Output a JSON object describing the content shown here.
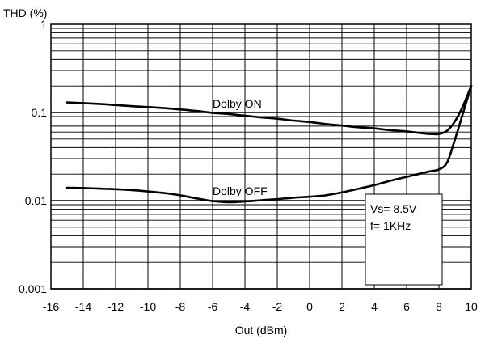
{
  "chart_data": {
    "type": "line",
    "title": "",
    "ylabel": "THD (%)",
    "xlabel": "Out (dBm)",
    "xlim": [
      -16,
      10
    ],
    "ylim": [
      0.001,
      1
    ],
    "y_scale": "log",
    "grid": true,
    "x_ticks": [
      -16,
      -14,
      -12,
      -10,
      -8,
      -6,
      -4,
      -2,
      0,
      2,
      4,
      6,
      8,
      10
    ],
    "x_tick_labels": [
      "-16",
      "-14",
      "-12",
      "-10",
      "-8",
      "-6",
      "-4",
      "-2",
      "0",
      "2",
      "4",
      "6",
      "8",
      "10"
    ],
    "y_ticks": [
      1,
      0.1,
      0.01,
      0.001
    ],
    "y_tick_labels": [
      "1",
      "0.1",
      "0.01",
      "0.001"
    ],
    "series": [
      {
        "name": "Dolby ON",
        "x": [
          -15,
          -13,
          -11,
          -9,
          -7,
          -6,
          -5,
          -4,
          -3,
          -2,
          -1,
          0,
          1,
          2,
          3,
          4,
          5,
          6,
          7,
          7.5,
          8,
          8.5,
          9,
          9.5,
          10
        ],
        "y": [
          0.13,
          0.125,
          0.118,
          0.112,
          0.104,
          0.099,
          0.096,
          0.092,
          0.088,
          0.085,
          0.081,
          0.078,
          0.074,
          0.071,
          0.068,
          0.066,
          0.063,
          0.061,
          0.058,
          0.057,
          0.057,
          0.062,
          0.08,
          0.12,
          0.2
        ]
      },
      {
        "name": "Dolby OFF",
        "x": [
          -15,
          -13,
          -11,
          -9,
          -8,
          -7,
          -6,
          -5,
          -4,
          -3,
          -2,
          -1,
          0,
          1,
          2,
          3,
          4,
          5,
          6,
          7,
          7.5,
          8,
          8.5,
          9,
          9.5,
          10
        ],
        "y": [
          0.014,
          0.0137,
          0.0132,
          0.0122,
          0.0115,
          0.0106,
          0.0099,
          0.0096,
          0.0098,
          0.0101,
          0.0104,
          0.0108,
          0.0111,
          0.0115,
          0.0124,
          0.0136,
          0.015,
          0.0168,
          0.0186,
          0.0206,
          0.0216,
          0.0226,
          0.027,
          0.05,
          0.1,
          0.2
        ]
      }
    ],
    "annotations": [
      "Vs= 8.5V",
      "f= 1KHz"
    ]
  }
}
